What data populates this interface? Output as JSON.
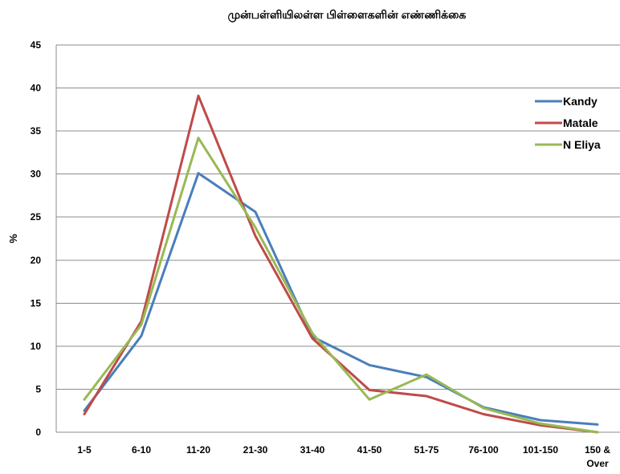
{
  "chart_data": {
    "type": "line",
    "title": "முன்பள்ளியிலள்ள பிள்ளைகளின் எண்ணிக்கை",
    "xlabel": "",
    "ylabel": "%",
    "categories": [
      "1-5",
      "6-10",
      "11-20",
      "21-30",
      "31-40",
      "41-50",
      "51-75",
      "76-100",
      "101-150",
      "150 & Over"
    ],
    "category_labels": [
      [
        "1-5"
      ],
      [
        "6-10"
      ],
      [
        "11-20"
      ],
      [
        "21-30"
      ],
      [
        "31-40"
      ],
      [
        "41-50"
      ],
      [
        "51-75"
      ],
      [
        "76-100"
      ],
      [
        "101-150"
      ],
      [
        "150 &",
        "Over"
      ]
    ],
    "ylim": [
      0,
      45
    ],
    "yticks": [
      0,
      5,
      10,
      15,
      20,
      25,
      30,
      35,
      40,
      45
    ],
    "grid": true,
    "legend_position": "right",
    "series": [
      {
        "name": "Kandy",
        "color": "#4a7ebb",
        "values": [
          2.5,
          11.2,
          30.1,
          25.6,
          11.1,
          7.8,
          6.4,
          2.9,
          1.4,
          0.9
        ]
      },
      {
        "name": "Matale",
        "color": "#be4b48",
        "values": [
          2.1,
          12.9,
          39.1,
          22.8,
          10.9,
          4.9,
          4.2,
          2.1,
          0.8,
          0.0
        ]
      },
      {
        "name": "N Eliya",
        "color": "#98b954",
        "values": [
          3.8,
          12.5,
          34.2,
          23.8,
          11.5,
          3.8,
          6.7,
          2.8,
          1.0,
          0.0
        ]
      }
    ]
  }
}
